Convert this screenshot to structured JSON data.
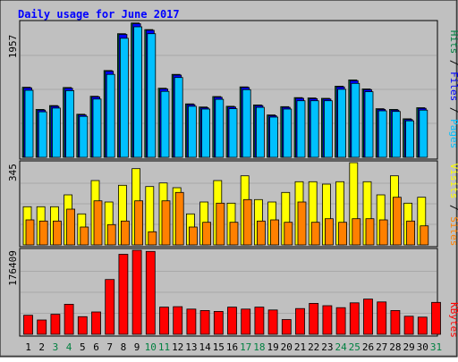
{
  "chart_data": [
    {
      "type": "bar",
      "title": "Daily usage for June 2017",
      "categories": [
        "1",
        "2",
        "3",
        "4",
        "5",
        "6",
        "7",
        "8",
        "9",
        "10",
        "11",
        "12",
        "13",
        "14",
        "15",
        "16",
        "17",
        "18",
        "19",
        "20",
        "21",
        "22",
        "23",
        "24",
        "25",
        "26",
        "27",
        "28",
        "29",
        "30",
        "31"
      ],
      "weekend_days": [
        "3",
        "4",
        "10",
        "11",
        "17",
        "18",
        "24",
        "25",
        "31"
      ],
      "ylabel_max": "1957",
      "ylim": [
        0,
        1957
      ],
      "legend": [
        "Pages",
        "Files",
        "Hits"
      ],
      "series": [
        {
          "name": "Hits",
          "color": "#008040",
          "values": [
            1010,
            690,
            745,
            1005,
            620,
            880,
            1250,
            1780,
            1935,
            1840,
            995,
            1195,
            770,
            725,
            875,
            735,
            1015,
            755,
            610,
            730,
            860,
            855,
            850,
            1025,
            1115,
            985,
            700,
            690,
            555,
            715,
            0
          ]
        },
        {
          "name": "Files",
          "color": "#0000ff",
          "values": [
            1000,
            680,
            735,
            995,
            610,
            870,
            1240,
            1770,
            1925,
            1830,
            985,
            1185,
            760,
            715,
            865,
            725,
            1005,
            745,
            600,
            720,
            850,
            845,
            840,
            1015,
            1105,
            975,
            690,
            680,
            545,
            705,
            0
          ]
        },
        {
          "name": "Pages",
          "color": "#00c0ff",
          "values": [
            965,
            655,
            710,
            960,
            590,
            840,
            1195,
            1715,
            1880,
            1780,
            950,
            1150,
            735,
            695,
            835,
            700,
            975,
            720,
            580,
            695,
            815,
            815,
            815,
            980,
            1065,
            945,
            670,
            660,
            525,
            680,
            0
          ]
        }
      ]
    },
    {
      "type": "bar",
      "categories": [
        "1",
        "2",
        "3",
        "4",
        "5",
        "6",
        "7",
        "8",
        "9",
        "10",
        "11",
        "12",
        "13",
        "14",
        "15",
        "16",
        "17",
        "18",
        "19",
        "20",
        "21",
        "22",
        "23",
        "24",
        "25",
        "26",
        "27",
        "28",
        "29",
        "30",
        "31"
      ],
      "ylabel_max": "345",
      "ylim": [
        0,
        345
      ],
      "legend": [
        "Sites",
        "Visits"
      ],
      "series": [
        {
          "name": "Visits",
          "color": "#ffff00",
          "values": [
            160,
            160,
            160,
            210,
            130,
            270,
            180,
            250,
            320,
            245,
            260,
            240,
            130,
            180,
            270,
            175,
            290,
            190,
            180,
            220,
            265,
            265,
            255,
            265,
            345,
            265,
            210,
            290,
            175,
            200,
            0
          ]
        },
        {
          "name": "Sites",
          "color": "#ff8000",
          "values": [
            105,
            100,
            100,
            150,
            75,
            185,
            85,
            100,
            185,
            55,
            185,
            220,
            75,
            95,
            175,
            95,
            190,
            100,
            105,
            95,
            180,
            95,
            110,
            95,
            110,
            110,
            105,
            200,
            100,
            80,
            0
          ]
        }
      ]
    },
    {
      "type": "bar",
      "categories": [
        "1",
        "2",
        "3",
        "4",
        "5",
        "6",
        "7",
        "8",
        "9",
        "10",
        "11",
        "12",
        "13",
        "14",
        "15",
        "16",
        "17",
        "18",
        "19",
        "20",
        "21",
        "22",
        "23",
        "24",
        "25",
        "26",
        "27",
        "28",
        "29",
        "30",
        "31"
      ],
      "ylabel_max": "176409",
      "ylim": [
        0,
        176409
      ],
      "legend": [
        "KBytes"
      ],
      "series": [
        {
          "name": "KBytes",
          "color": "#ff0000",
          "values": [
            40000,
            30000,
            42000,
            63000,
            37000,
            47000,
            115000,
            168000,
            176409,
            174000,
            57000,
            58000,
            53000,
            50000,
            48000,
            57000,
            53000,
            57000,
            51000,
            31000,
            54000,
            65000,
            60000,
            56000,
            66000,
            74000,
            68000,
            50000,
            38000,
            36000,
            67000
          ]
        }
      ]
    }
  ]
}
